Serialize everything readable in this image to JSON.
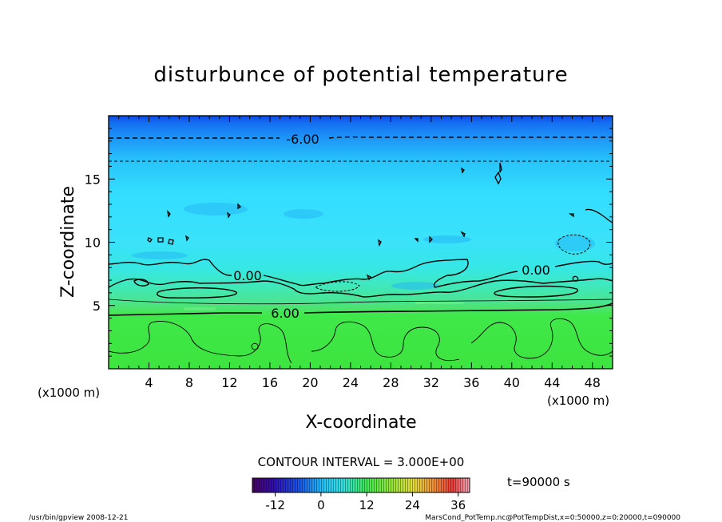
{
  "chart_data": {
    "type": "heatmap",
    "title": "disturbunce of potential temperature",
    "xlabel": "X-coordinate",
    "ylabel": "Z-coordinate",
    "x_unit": "(x1000 m)",
    "x_unit_right": "(x1000 m)",
    "xlim": [
      0,
      50
    ],
    "ylim": [
      0,
      20
    ],
    "x_ticks": [
      4,
      8,
      12,
      16,
      20,
      24,
      28,
      32,
      36,
      40,
      44,
      48
    ],
    "y_ticks": [
      5,
      10,
      15
    ],
    "contour_interval_text": "CONTOUR INTERVAL = 3.000E+00",
    "time_label": "t=90000 s",
    "contour_labels": [
      {
        "text": "-6.00",
        "x": 19.0,
        "z": 18.2
      },
      {
        "text": "0.00",
        "x": 14.0,
        "z": 7.3
      },
      {
        "text": "0.00",
        "x": 42.0,
        "z": 7.7
      },
      {
        "text": "6.00",
        "x": 17.0,
        "z": 4.5
      }
    ],
    "field_bands": [
      {
        "z_from": 0,
        "z_to": 4.6,
        "value": 6
      },
      {
        "z_from": 4.6,
        "z_to": 5.2,
        "value": 4.5
      },
      {
        "z_from": 5.2,
        "z_to": 8.0,
        "value": 2
      },
      {
        "z_from": 8.0,
        "z_to": 14.0,
        "value": 0
      },
      {
        "z_from": 14.0,
        "z_to": 16.3,
        "value": -1.5
      },
      {
        "z_from": 16.3,
        "z_to": 18.2,
        "value": -4
      },
      {
        "z_from": 18.2,
        "z_to": 20.0,
        "value": -7
      }
    ],
    "colorbar": {
      "min": -18,
      "max": 39,
      "tick_values": [
        -12,
        0,
        12,
        24,
        36
      ],
      "tick_labels": [
        "-12",
        "0",
        "12",
        "24",
        "36"
      ]
    }
  },
  "footer": {
    "left": "/usr/bin/gpview   2008-12-21",
    "right": "MarsCond_PotTemp.nc@PotTempDist,x=0:50000,z=0:20000,t=090000"
  }
}
